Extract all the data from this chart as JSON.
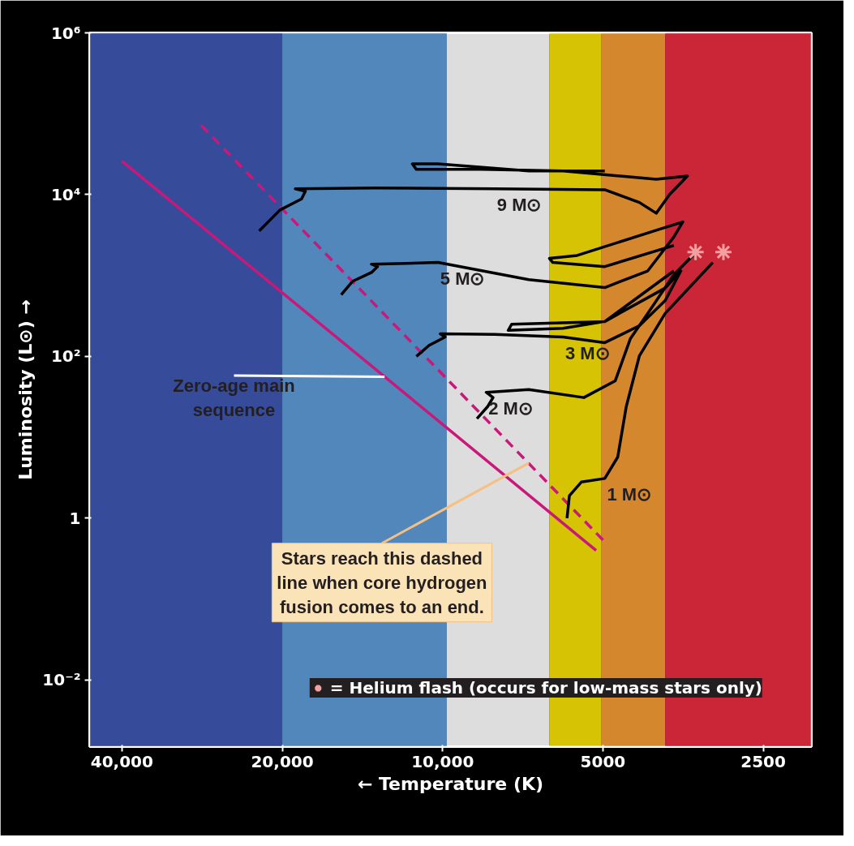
{
  "chart_data": {
    "type": "line",
    "xlabel": "← Temperature (K)",
    "ylabel": "Luminosity (L⊙) →",
    "log": "xy",
    "grid": false,
    "legend": "bottom right",
    "xlim": [
      46000,
      2030
    ],
    "ylim": [
      0.0015,
      1000000
    ],
    "xticks": [
      {
        "value": 40000,
        "label": "40,000"
      },
      {
        "value": 20000,
        "label": "20,000"
      },
      {
        "value": 10000,
        "label": "10,000"
      },
      5000,
      2500
    ],
    "yticks": [
      {
        "value": 0.01,
        "label": "10⁻²"
      },
      1,
      {
        "value": 100,
        "label": "10²"
      },
      {
        "value": 10000,
        "label": "10⁴"
      },
      {
        "value": 1000000,
        "label": "10⁶"
      }
    ],
    "bands": [
      {
        "axis": "x",
        "from": 46000,
        "to": 20000,
        "color": "#3a55b0"
      },
      {
        "axis": "x",
        "from": 20000,
        "to": 9820,
        "color": "#5b9ad8"
      },
      {
        "axis": "x",
        "from": 9820,
        "to": 6300,
        "color": "#ffffff"
      },
      {
        "axis": "x",
        "from": 6300,
        "to": 5040,
        "color": "#f5e000"
      },
      {
        "axis": "x",
        "from": 5040,
        "to": 3820,
        "color": "#f59a30"
      },
      {
        "axis": "x",
        "from": 3820,
        "to": 2030,
        "color": "#e8283c"
      }
    ],
    "series": [
      {
        "color": "#c8197a",
        "line_style": "solid",
        "x": [
          40000,
          5150
        ],
        "values": [
          26000,
          0.4
        ]
      },
      {
        "color": "#c8197a",
        "line_style": "dashed",
        "x": [
          28400,
          4960
        ],
        "values": [
          72000,
          0.51
        ]
      },
      {
        "name": "9 M⊙",
        "color": "#000000",
        "line_style": "solid",
        "x": [
          22100,
          20200,
          18400,
          18100,
          18900,
          13400,
          7980,
          4960,
          4270,
          3970,
          3750,
          3470,
          3970,
          5940,
          8470,
          11200,
          11400,
          10200,
          6890,
          4960
        ],
        "values": [
          3550,
          6460,
          8850,
          11000,
          11800,
          12100,
          11800,
          11500,
          8000,
          5890,
          10000,
          17000,
          15500,
          19600,
          20500,
          20500,
          24000,
          24000,
          19600,
          19600
        ]
      },
      {
        "name": "5 M⊙",
        "color": "#000000",
        "line_style": "solid",
        "x": [
          15500,
          14750,
          13600,
          13250,
          13600,
          10200,
          6890,
          4960,
          4120,
          3680,
          3540,
          3970,
          5590,
          6300,
          6210,
          4960,
          3680
        ],
        "values": [
          580,
          850,
          1090,
          1290,
          1380,
          1450,
          890,
          710,
          1140,
          3000,
          4600,
          3630,
          1770,
          1630,
          1450,
          1290,
          2350
        ]
      },
      {
        "name": "3 M⊙",
        "color": "#000000",
        "line_style": "solid",
        "x": [
          11200,
          10600,
          9890,
          10100,
          7980,
          5940,
          4960,
          4270,
          3820,
          3570,
          3820,
          4960,
          7420,
          7530,
          5940,
          4960,
          3680
        ],
        "values": [
          100,
          137,
          174,
          190,
          187,
          174,
          148,
          240,
          490,
          1140,
          700,
          270,
          250,
          210,
          223,
          270,
          1140
        ]
      },
      {
        "name": "2 M⊙",
        "color": "#000000",
        "line_style": "solid",
        "x": [
          8620,
          8230,
          8040,
          8280,
          6890,
          5430,
          4740,
          4440,
          4120,
          3680,
          3390
        ],
        "values": [
          17,
          24,
          31,
          36,
          39,
          31,
          50,
          166,
          340,
          1020,
          1770
        ]
      },
      {
        "name": "1 M⊙",
        "color": "#000000",
        "line_style": "solid",
        "x": [
          5840,
          5780,
          5490,
          4960,
          4690,
          4520,
          4270,
          3820,
          3110
        ],
        "values": [
          1,
          1.9,
          2.8,
          3.1,
          5.7,
          24,
          102,
          340,
          1450
        ]
      },
      {
        "type": "scatter",
        "marker": "cross",
        "name": "= Helium flash (occurs for low-mass stars only)",
        "color": "#f4a0a0",
        "x": [
          3350,
          2970
        ],
        "values": [
          1950,
          1950
        ]
      }
    ],
    "annotations": [
      {
        "text": "Zero-age main sequence",
        "x": 12850,
        "y": 56
      },
      {
        "text": "Stars reach this dashed line when core hydrogen fusion comes to an end.",
        "x": 6890,
        "y": 4.8
      }
    ]
  }
}
